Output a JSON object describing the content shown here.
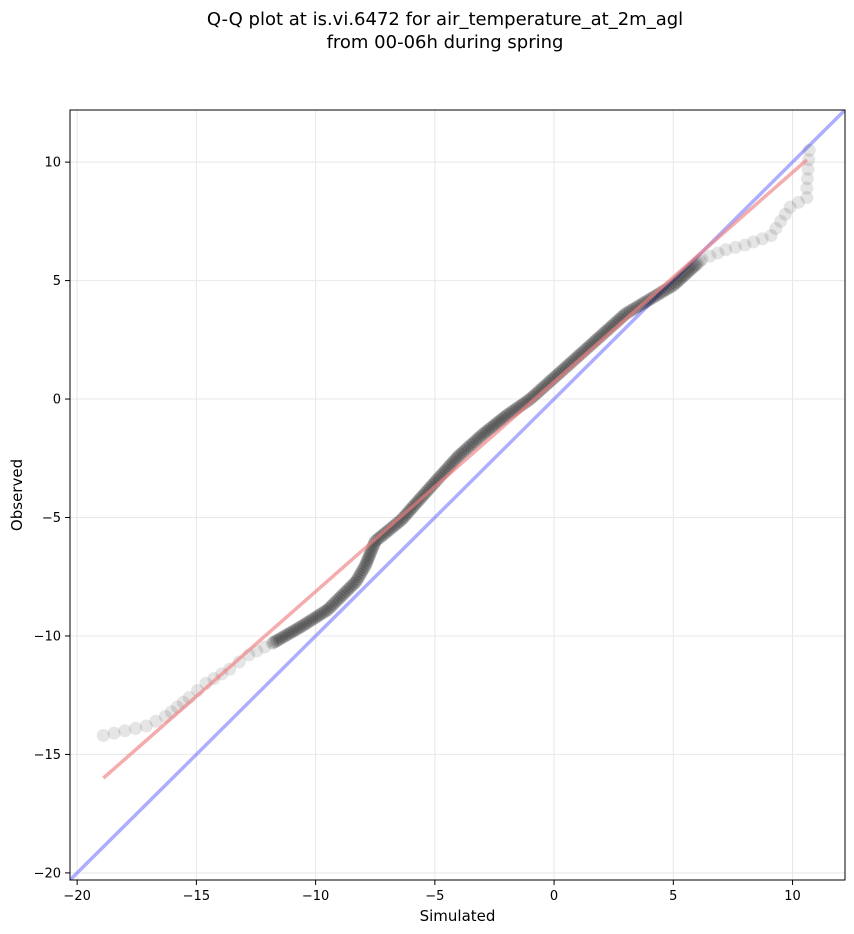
{
  "chart_data": {
    "type": "scatter",
    "title": "Q-Q plot at is.vi.6472 for air_temperature_at_2m_agl",
    "subtitle": "from 00-06h during spring",
    "xlabel": "Simulated",
    "ylabel": "Observed",
    "xlim": [
      -20.3,
      12.2
    ],
    "ylim": [
      -20.3,
      12.2
    ],
    "xticks": [
      -20,
      -15,
      -10,
      -5,
      0,
      5,
      10
    ],
    "yticks": [
      -20,
      -15,
      -10,
      -5,
      0,
      5,
      10
    ],
    "xtick_labels": [
      "−20",
      "−15",
      "−10",
      "−5",
      "0",
      "5",
      "10"
    ],
    "ytick_labels": [
      "−20",
      "−15",
      "−10",
      "−5",
      "0",
      "5",
      "10"
    ],
    "grid": true,
    "colors": {
      "points": "#000000",
      "fit_line": "#f08080",
      "identity_line": "#6b6bff",
      "grid": "#e8e8e8"
    },
    "quantile_anchors": {
      "x": [
        -18.9,
        -18.0,
        -17.1,
        -16.3,
        -15.8,
        -15.3,
        -14.6,
        -13.6,
        -12.8,
        -11.8,
        -10.6,
        -9.5,
        -8.3,
        -7.9,
        -7.5,
        -6.4,
        -5.7,
        -4.9,
        -4.0,
        -3.0,
        -2.0,
        -1.0,
        0.0,
        1.0,
        2.0,
        3.0,
        4.0,
        5.0,
        6.2,
        7.2,
        8.0,
        9.1,
        9.9,
        10.6,
        10.6,
        10.7
      ],
      "y": [
        -14.2,
        -14.0,
        -13.8,
        -13.4,
        -13.0,
        -12.6,
        -12.0,
        -11.4,
        -10.8,
        -10.3,
        -9.6,
        -8.9,
        -7.7,
        -7.0,
        -6.0,
        -5.1,
        -4.3,
        -3.4,
        -2.4,
        -1.5,
        -0.7,
        0.0,
        0.9,
        1.8,
        2.7,
        3.6,
        4.2,
        4.8,
        5.9,
        6.3,
        6.5,
        6.9,
        8.1,
        8.5,
        8.9,
        10.5
      ]
    },
    "fit_line": {
      "x": [
        -18.9,
        10.6
      ],
      "y": [
        -16.0,
        10.1
      ]
    },
    "identity_line": {
      "x": [
        -20.3,
        12.2
      ],
      "y": [
        -20.3,
        12.2
      ]
    }
  }
}
